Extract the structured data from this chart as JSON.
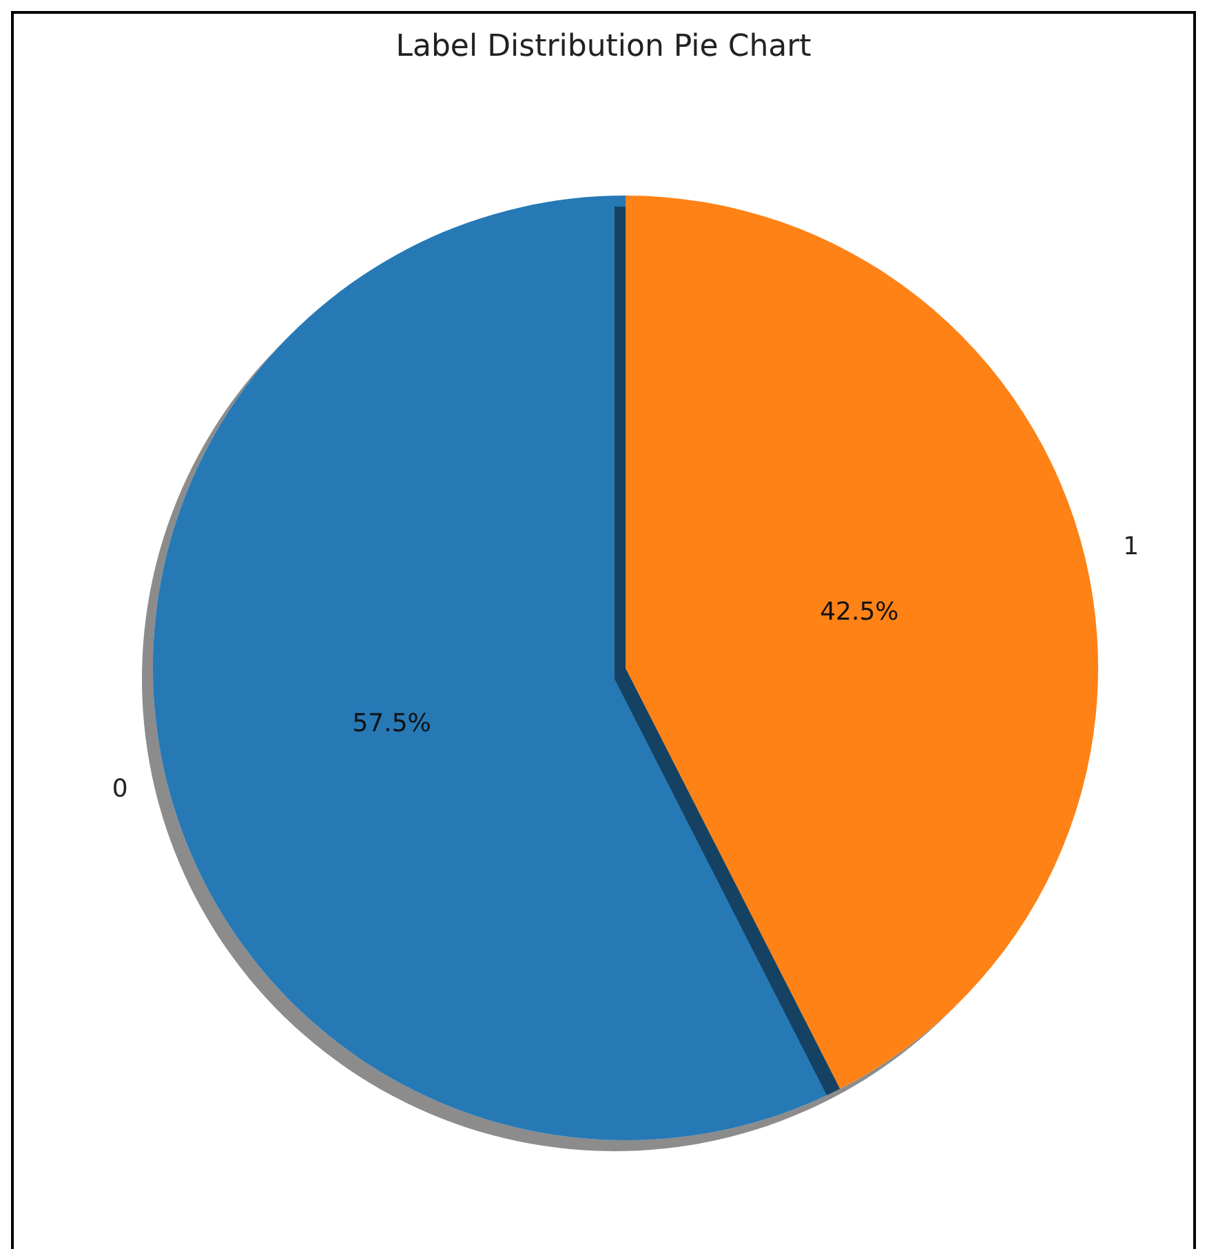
{
  "chart_data": {
    "type": "pie",
    "title": "Label Distribution Pie Chart",
    "categories": [
      "0",
      "1"
    ],
    "values": [
      57.5,
      42.5
    ],
    "colors": [
      "#2579b5",
      "#fe8216"
    ],
    "value_labels": [
      "57.5%",
      "42.5%"
    ]
  }
}
